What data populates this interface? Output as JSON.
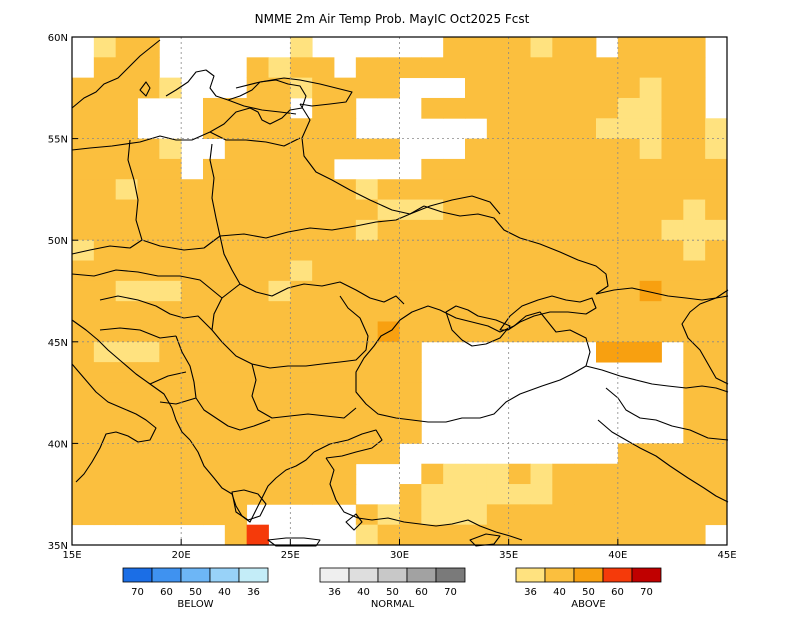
{
  "title": "NMME 2m Air Temp Prob. MayIC  Oct2025 Fcst",
  "map": {
    "lon_range": [
      15,
      45
    ],
    "lat_range": [
      35,
      60
    ],
    "lon_ticks": [
      {
        "value": 15,
        "label": "15E"
      },
      {
        "value": 20,
        "label": "20E"
      },
      {
        "value": 25,
        "label": "25E"
      },
      {
        "value": 30,
        "label": "30E"
      },
      {
        "value": 35,
        "label": "35E"
      },
      {
        "value": 40,
        "label": "40E"
      },
      {
        "value": 45,
        "label": "45E"
      }
    ],
    "lat_ticks": [
      {
        "value": 60,
        "label": "60N"
      },
      {
        "value": 55,
        "label": "55N"
      },
      {
        "value": 50,
        "label": "50N"
      },
      {
        "value": 45,
        "label": "45N"
      },
      {
        "value": 40,
        "label": "40N"
      },
      {
        "value": 35,
        "label": "35N"
      }
    ],
    "grid": true,
    "grid_step_deg": 5,
    "cell_deg": 1,
    "water_color": "#ffffff",
    "land_default_color": "#ffe27f",
    "category_colors": {
      "w": "#ffffff",
      "n": "#ffffff",
      "l": "#ffe27f",
      "m": "#fbbf3e",
      "h": "#f8a010",
      "r": "#f53a0a",
      "d": "#c00000"
    },
    "cell_rows_north_to_south": [
      "wlmmwwwwwwlwwwwwwmmmmlmmwmmmmw",
      "wmmmwwwwmlmmwmmmmmmmmmmmmmmmmw",
      "mmmmlwwwmmlmmmmwwwmmmmmmmmlmmw",
      "mmmwwwmmmmwmmwwwmmmmmmmmmllmmw",
      "mmmwwwmmmmmmmwwwwwwmmmmmlllmml",
      "mmmmlwwmmmmmmmmwwwmmmmmmmmlmml",
      "mmmmmwmmmmmmwwwwmmmmmmmmmmmmmm",
      "mmlmmmmmmmmmmlmmmmmmmmmmmmmmmm",
      "mmmmmmmmmmmmmmlllmmmmmmmmmmmlm",
      "mmmmmmmmmmmmmlmmmmmmmmmmmmmlll",
      "lmmmmmmmmmmmmmmmmmmmmmmmmmmmlm",
      "mmmmmmmmmmlmmmmmmmmmmmmmmmmmmm",
      "mmlllmmmmlmmmmmmmmmmmmmmmmhmmm",
      "mmmmmmmmmmmmmmmmmmmmmmmmmmmmmm",
      "mmmmmmmmmmmmmmhmmmmmmmmmmmmmmm",
      "mlllmmmmmmmmmmmmwwwwwwwwhhhwmm",
      "mmmmmmmmmmmmmmmmwwwwwwwwwwwwmm",
      "mmmmmmmmmmmmmmmmwwwwwwwwwwwwmm",
      "mmmmmmmmmmmmmmmmwwwwwwwwwwwwmm",
      "mmmmmmmmmmmmmmmmwwwwwwwwwwwwmm",
      "mmmmmmmmmmmmmmmwwwwwwwwwwmmmmm",
      "mmmmmmmmmmmmmwwwmlllmlmmmmmmmm",
      "mmmmmmmmmmmmmwwmllllllmmmmmmmm",
      "mmmmmmmmwwwwwmlmlllmmmmmmmmmmm",
      "wwwwwwwmrwwwwlmmmmmmmmmmmmmmmw"
    ]
  },
  "legend": {
    "groups": [
      {
        "name": "BELOW",
        "labels": [
          "70",
          "60",
          "50",
          "40",
          "36"
        ],
        "colors": [
          "#1b6ee6",
          "#3f92f0",
          "#6db6f6",
          "#98d2f8",
          "#c4edf8"
        ]
      },
      {
        "name": "NORMAL",
        "labels": [
          "36",
          "40",
          "50",
          "60",
          "70"
        ],
        "colors": [
          "#efefef",
          "#dedede",
          "#c8c8c8",
          "#a2a2a2",
          "#7a7a7a"
        ]
      },
      {
        "name": "ABOVE",
        "labels": [
          "36",
          "40",
          "50",
          "60",
          "70"
        ],
        "colors": [
          "#ffe27f",
          "#fbbf3e",
          "#f8a010",
          "#f53a0a",
          "#c00000"
        ]
      }
    ]
  }
}
